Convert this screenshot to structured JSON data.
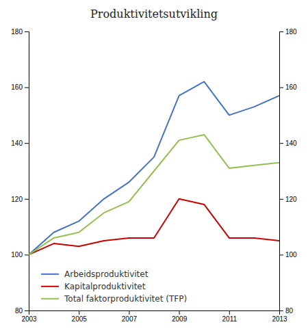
{
  "chart_data": {
    "type": "line",
    "title": "Produktivitetsutvikling",
    "x": [
      2003,
      2004,
      2005,
      2006,
      2007,
      2008,
      2009,
      2010,
      2011,
      2012,
      2013
    ],
    "series": [
      {
        "name": "Arbeidsproduktivitet",
        "color": "#4472C4",
        "values": [
          100,
          108,
          112,
          120,
          126,
          135,
          157,
          162,
          150,
          153,
          157
        ]
      },
      {
        "name": "Kapitalproduktivitet",
        "color": "#CC0000",
        "values": [
          100,
          104,
          103,
          105,
          106,
          106,
          120,
          118,
          106,
          106,
          105
        ]
      },
      {
        "name": "Total faktorproduktivitet (TFP)",
        "color": "#92C050",
        "values": [
          100,
          106,
          108,
          115,
          119,
          130,
          141,
          143,
          131,
          132,
          133
        ]
      }
    ],
    "xlim": [
      2003,
      2013
    ],
    "xticks": [
      2003,
      2005,
      2007,
      2009,
      2011,
      2013
    ],
    "ylim": [
      80,
      180
    ],
    "yticks": [
      80,
      100,
      120,
      140,
      160,
      180
    ],
    "y2lim": [
      80,
      180
    ],
    "y2ticks": [
      80,
      100,
      120,
      140,
      160,
      180
    ],
    "grid": false,
    "legend": "lower left"
  }
}
